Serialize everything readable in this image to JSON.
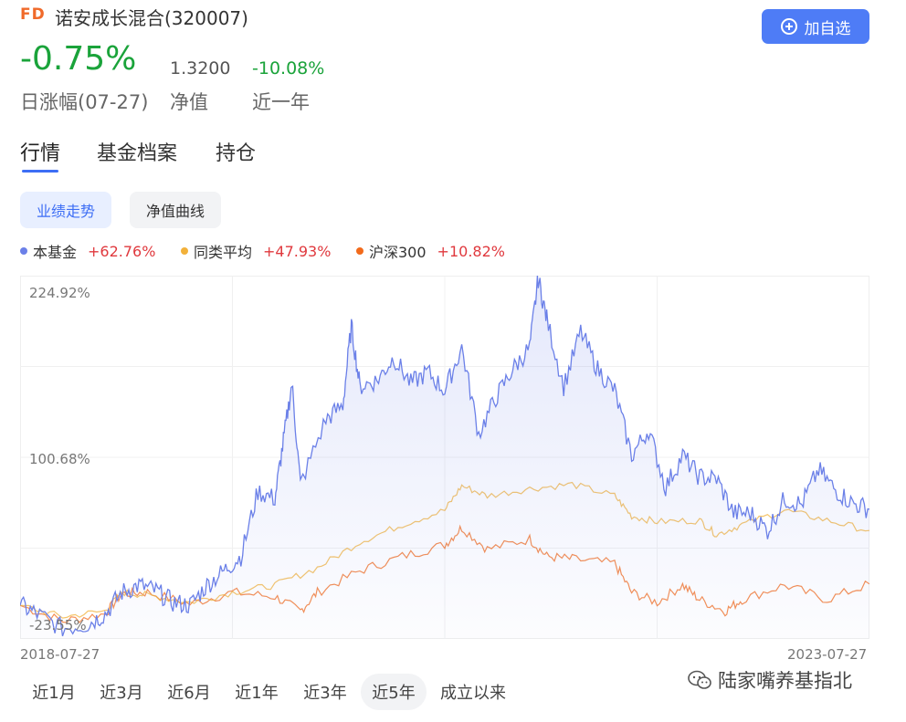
{
  "header": {
    "badge": "FD",
    "fund_name": "诺安成长混合(320007)",
    "add_button": "加自选"
  },
  "stats": {
    "day_change": "-0.75%",
    "day_change_label": "日涨幅(07-27)",
    "nav": "1.3200",
    "nav_label": "净值",
    "year_change": "-10.08%",
    "year_label": "近一年"
  },
  "tabs": [
    "行情",
    "基金档案",
    "持仓"
  ],
  "subtabs": [
    "业绩走势",
    "净值曲线"
  ],
  "legend": [
    {
      "name": "本基金",
      "value": "+62.76%",
      "color": "#6b80e8"
    },
    {
      "name": "同类平均",
      "value": "+47.93%",
      "color": "#f2b13a"
    },
    {
      "name": "沪深300",
      "value": "+10.82%",
      "color": "#f26a1b"
    }
  ],
  "chart_data": {
    "type": "line",
    "y_labels": [
      "224.92%",
      "100.68%",
      "-23.55%"
    ],
    "ylim": [
      -23.55,
      224.92
    ],
    "x_start": "2018-07-27",
    "x_end": "2023-07-27",
    "grid": true,
    "legend": "top-left",
    "series": [
      {
        "name": "本基金",
        "color": "#6b80e8",
        "values": [
          [
            0,
            -4
          ],
          [
            0.02,
            -10
          ],
          [
            0.05,
            -20
          ],
          [
            0.08,
            -17
          ],
          [
            0.1,
            -10
          ],
          [
            0.12,
            5
          ],
          [
            0.14,
            10
          ],
          [
            0.16,
            6
          ],
          [
            0.18,
            -2
          ],
          [
            0.2,
            -4
          ],
          [
            0.22,
            10
          ],
          [
            0.24,
            20
          ],
          [
            0.26,
            30
          ],
          [
            0.28,
            75
          ],
          [
            0.3,
            70
          ],
          [
            0.31,
            110
          ],
          [
            0.32,
            150
          ],
          [
            0.33,
            80
          ],
          [
            0.36,
            125
          ],
          [
            0.38,
            135
          ],
          [
            0.39,
            190
          ],
          [
            0.4,
            148
          ],
          [
            0.42,
            152
          ],
          [
            0.44,
            168
          ],
          [
            0.46,
            150
          ],
          [
            0.48,
            158
          ],
          [
            0.5,
            145
          ],
          [
            0.52,
            175
          ],
          [
            0.54,
            115
          ],
          [
            0.56,
            140
          ],
          [
            0.58,
            160
          ],
          [
            0.6,
            175
          ],
          [
            0.61,
            223
          ],
          [
            0.62,
            195
          ],
          [
            0.64,
            148
          ],
          [
            0.66,
            186
          ],
          [
            0.68,
            160
          ],
          [
            0.7,
            145
          ],
          [
            0.72,
            100
          ],
          [
            0.74,
            118
          ],
          [
            0.76,
            78
          ],
          [
            0.78,
            100
          ],
          [
            0.8,
            85
          ],
          [
            0.82,
            84
          ],
          [
            0.84,
            60
          ],
          [
            0.86,
            60
          ],
          [
            0.88,
            48
          ],
          [
            0.9,
            70
          ],
          [
            0.92,
            66
          ],
          [
            0.94,
            90
          ],
          [
            0.96,
            76
          ],
          [
            0.98,
            67
          ],
          [
            1.0,
            62.76
          ]
        ]
      },
      {
        "name": "同类平均",
        "color": "#f2b13a",
        "values": [
          [
            0,
            -4
          ],
          [
            0.05,
            -12
          ],
          [
            0.1,
            -8
          ],
          [
            0.12,
            5
          ],
          [
            0.15,
            3
          ],
          [
            0.2,
            -2
          ],
          [
            0.25,
            5
          ],
          [
            0.3,
            10
          ],
          [
            0.35,
            22
          ],
          [
            0.4,
            40
          ],
          [
            0.45,
            52
          ],
          [
            0.5,
            62
          ],
          [
            0.52,
            79
          ],
          [
            0.55,
            72
          ],
          [
            0.6,
            77
          ],
          [
            0.65,
            80
          ],
          [
            0.7,
            72
          ],
          [
            0.72,
            58
          ],
          [
            0.75,
            54
          ],
          [
            0.8,
            55
          ],
          [
            0.82,
            45
          ],
          [
            0.85,
            52
          ],
          [
            0.9,
            62
          ],
          [
            0.95,
            55
          ],
          [
            1.0,
            47.93
          ]
        ]
      },
      {
        "name": "沪深300",
        "color": "#f26a1b",
        "values": [
          [
            0,
            -4
          ],
          [
            0.05,
            -15
          ],
          [
            0.1,
            -10
          ],
          [
            0.12,
            4
          ],
          [
            0.15,
            5
          ],
          [
            0.2,
            -3
          ],
          [
            0.25,
            5
          ],
          [
            0.3,
            2
          ],
          [
            0.33,
            -8
          ],
          [
            0.35,
            5
          ],
          [
            0.4,
            20
          ],
          [
            0.45,
            30
          ],
          [
            0.5,
            38
          ],
          [
            0.52,
            50
          ],
          [
            0.55,
            35
          ],
          [
            0.6,
            42
          ],
          [
            0.62,
            30
          ],
          [
            0.65,
            28
          ],
          [
            0.7,
            25
          ],
          [
            0.72,
            5
          ],
          [
            0.75,
            -2
          ],
          [
            0.78,
            10
          ],
          [
            0.8,
            0
          ],
          [
            0.83,
            -8
          ],
          [
            0.85,
            0
          ],
          [
            0.9,
            10
          ],
          [
            0.95,
            0
          ],
          [
            1.0,
            10.82
          ]
        ]
      }
    ]
  },
  "date_start": "2018-07-27",
  "date_end": "2023-07-27",
  "periods": [
    "近1月",
    "近3月",
    "近6月",
    "近1年",
    "近3年",
    "近5年",
    "成立以来"
  ],
  "active_period": "近5年",
  "watermark": "陆家嘴养基指北"
}
